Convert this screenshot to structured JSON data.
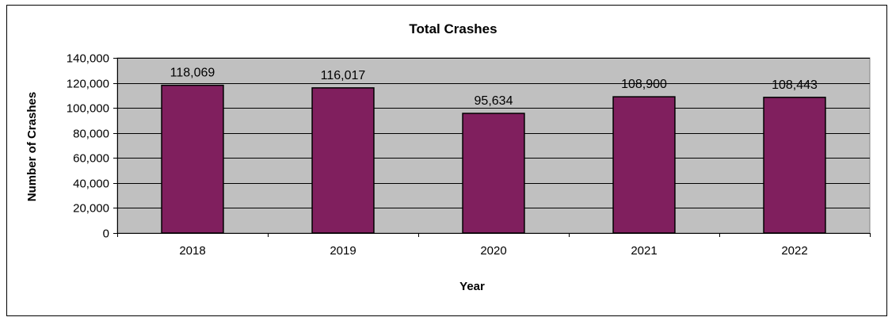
{
  "chart_data": {
    "type": "bar",
    "title": "Total Crashes",
    "xlabel": "Year",
    "ylabel": "Number of Crashes",
    "categories": [
      "2018",
      "2019",
      "2020",
      "2021",
      "2022"
    ],
    "values": [
      118069,
      116017,
      95634,
      108900,
      108443
    ],
    "value_labels": [
      "118,069",
      "116,017",
      "95,634",
      "108,900",
      "108,443"
    ],
    "ylim": [
      0,
      140000
    ],
    "yticks": [
      0,
      20000,
      40000,
      60000,
      80000,
      100000,
      120000,
      140000
    ],
    "ytick_labels": [
      "0",
      "20,000",
      "40,000",
      "60,000",
      "80,000",
      "100,000",
      "120,000",
      "140,000"
    ],
    "grid": true,
    "legend": "none",
    "colors": {
      "bar": "#801f5e",
      "plot_background": "#c0c0c0",
      "gridline": "#000000"
    }
  }
}
